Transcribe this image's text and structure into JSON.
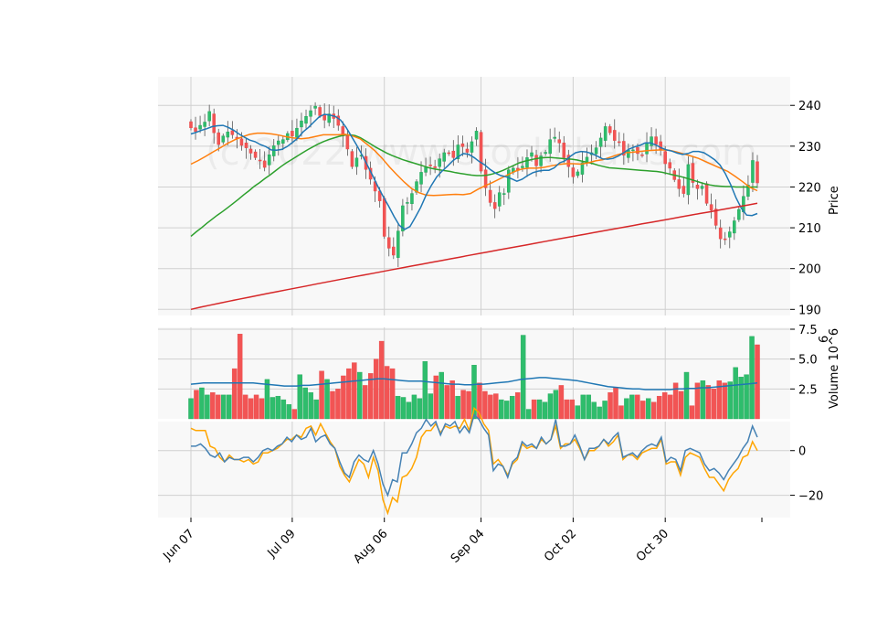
{
  "watermark": "(c)2022 www.stockcharts.com",
  "colors": {
    "up": "#26a65b",
    "down": "#e84a4a",
    "up_body": "#2ebd6c",
    "down_body": "#f25454",
    "ma1": "#1f77b4",
    "ma2": "#ff7f0e",
    "ma3": "#2ca02c",
    "ma4": "#d62728",
    "vol_ma": "#1f77b4",
    "osc1": "#4682b4",
    "osc2": "#ffa500",
    "panel_bg": "#f8f8f8",
    "grid": "#d0d0d0"
  },
  "chart_data": {
    "type": "candlestick",
    "x_tick_labels": [
      "Jun 07",
      "Jul 09",
      "Aug 06",
      "Sep 04",
      "Oct 02",
      "Oct 30"
    ],
    "x_tick_bar_index": [
      0,
      22,
      42,
      63,
      83,
      103
    ],
    "price_panel": {
      "ylabel": "Price",
      "ylim": [
        188.5,
        247
      ],
      "yticks": [
        190,
        200,
        210,
        220,
        230,
        240
      ],
      "close": [
        234.5,
        233.6,
        235.1,
        235.9,
        238.5,
        233.3,
        230.4,
        232.5,
        233.5,
        232.8,
        231.8,
        230.2,
        229.6,
        228.3,
        227.2,
        226.4,
        224.8,
        227.9,
        230.1,
        231.3,
        231.6,
        233.1,
        232.5,
        234.4,
        236.2,
        237.3,
        238.7,
        239.8,
        237.5,
        236.4,
        237.9,
        236.8,
        235.1,
        232.5,
        229.3,
        225.0,
        227.1,
        227.8,
        224.3,
        221.9,
        219.0,
        216.6,
        207.9,
        205.0,
        203.3,
        209.2,
        215.4,
        216.2,
        218.4,
        221.3,
        223.6,
        224.8,
        225.3,
        224.7,
        226.9,
        228.4,
        228.2,
        227.2,
        230.3,
        229.9,
        228.5,
        231.1,
        233.7,
        223.9,
        219.8,
        216.2,
        214.7,
        218.6,
        218.4,
        224.2,
        224.6,
        224.1,
        225.1,
        227.2,
        228.4,
        225.2,
        227.6,
        228.5,
        231.6,
        232.2,
        230.8,
        227.2,
        225.0,
        222.5,
        223.7,
        226.0,
        227.3,
        228.4,
        229.6,
        232.0,
        234.8,
        233.3,
        231.4,
        230.9,
        227.8,
        229.0,
        229.1,
        228.2,
        227.8,
        230.7,
        232.3,
        230.5,
        229.0,
        225.7,
        224.6,
        221.8,
        219.6,
        218.4,
        225.5,
        221.1,
        219.6,
        220.2,
        216.0,
        214.3,
        210.6,
        207.3,
        207.1,
        209.0,
        211.7,
        214.5,
        217.7,
        220.5,
        226.5,
        221.0
      ],
      "ohlc_note": "open/high/low derived in script from close for rendering",
      "moving_averages": [
        {
          "name": "MA10",
          "values": [
            233.0,
            233.4,
            233.9,
            234.3,
            234.8,
            235.0,
            235.1,
            234.6,
            233.9,
            233.0,
            232.2,
            231.5,
            231.1,
            230.4,
            229.9,
            229.1,
            229.0,
            229.2,
            229.9,
            230.9,
            232.0,
            233.5,
            234.6,
            235.9,
            237.2,
            237.8,
            237.6,
            237.3,
            236.4,
            234.7,
            232.5,
            230.3,
            227.9,
            225.4,
            222.8,
            220.1,
            217.6,
            215.3,
            212.8,
            210.6,
            209.6,
            210.3,
            212.6,
            215.0,
            218.0,
            220.4,
            222.5,
            223.9,
            225.1,
            226.4,
            227.4,
            228.2,
            228.0,
            227.2,
            226.2,
            225.4,
            224.3,
            223.4,
            222.8,
            222.5,
            222.0,
            221.4,
            221.9,
            222.8,
            223.5,
            223.9,
            224.1,
            224.1,
            224.7,
            225.9,
            226.4,
            227.5,
            228.4,
            228.7,
            228.6,
            228.2,
            227.6,
            226.9,
            226.8,
            227.0,
            227.6,
            228.4,
            229.3,
            229.8,
            230.2,
            230.8,
            230.8,
            230.3,
            229.6,
            229.1,
            228.8,
            228.3,
            228.0,
            228.2,
            228.7,
            228.7,
            228.4,
            227.6,
            226.7,
            225.4,
            223.3,
            220.6,
            217.4,
            214.8,
            213.1,
            213.0,
            213.5
          ],
          "note": "10-period"
        },
        {
          "name": "MA20",
          "values": [
            225.6,
            226.5,
            227.5,
            228.6,
            229.6,
            230.7,
            231.6,
            232.3,
            232.9,
            233.2,
            233.2,
            233.0,
            232.7,
            232.3,
            232.0,
            231.8,
            232.0,
            232.4,
            232.8,
            232.8,
            232.8,
            232.9,
            232.5,
            231.8,
            230.4,
            228.9,
            227.0,
            224.9,
            223.0,
            221.2,
            219.6,
            218.6,
            218.0,
            217.9,
            218.0,
            218.1,
            218.2,
            218.1,
            218.4,
            219.4,
            220.3,
            221.1,
            222.0,
            222.9,
            223.8,
            224.4,
            224.6,
            224.6,
            224.8,
            225.2,
            225.5,
            225.7,
            225.7,
            225.6,
            225.9,
            226.4,
            226.7,
            227.3,
            227.9,
            228.4,
            228.5,
            228.7,
            228.9,
            229.0,
            229.1,
            229.0,
            228.6,
            228.1,
            227.6,
            227.0,
            226.2,
            225.4,
            224.6,
            223.8,
            222.6,
            221.3,
            219.9,
            219.1
          ],
          "note": "20-period"
        },
        {
          "name": "MA50",
          "values": [
            207.9,
            209.0,
            210.0,
            211.1,
            212.1,
            213.1,
            214.0,
            215.0,
            216.0,
            217.0,
            218.1,
            219.1,
            220.2,
            221.1,
            222.1,
            223.0,
            224.0,
            225.0,
            225.9,
            226.7,
            227.5,
            228.3,
            229.1,
            229.8,
            230.5,
            231.1,
            231.6,
            232.0,
            232.4,
            232.7,
            232.8,
            232.6,
            232.1,
            231.3,
            230.5,
            229.7,
            229.0,
            228.3,
            227.7,
            227.2,
            226.7,
            226.3,
            225.9,
            225.5,
            225.1,
            224.7,
            224.4,
            224.2,
            224.0,
            223.8,
            223.5,
            223.3,
            223.1,
            222.9,
            222.8,
            222.8,
            222.9,
            223.2,
            223.6,
            224.1,
            224.7,
            225.3,
            225.9,
            226.3,
            226.6,
            226.9,
            227.1,
            227.2,
            227.2,
            227.1,
            227.0,
            226.9,
            226.8,
            226.6,
            226.3,
            226.0,
            225.7,
            225.3,
            225.0,
            224.7,
            224.6,
            224.5,
            224.4,
            224.3,
            224.2,
            224.1,
            224.0,
            223.9,
            223.8,
            223.6,
            223.3,
            223.0,
            222.7,
            222.4,
            222.0,
            221.6,
            221.2,
            220.8,
            220.5,
            220.3,
            220.2,
            220.1,
            220.1,
            220.0,
            220.0,
            220.0,
            220.0,
            220.0
          ],
          "note": "50-period"
        },
        {
          "name": "MA200",
          "note": "200-period, linear approx 190.0 to 216.0"
        }
      ]
    },
    "volume_panel": {
      "ylabel": "Volume  10^6",
      "ylim": [
        0,
        7.5
      ],
      "yticks": [
        2.5,
        5.0,
        7.5
      ],
      "values": [
        1.7,
        2.4,
        2.6,
        2.0,
        2.2,
        2.0,
        2.0,
        2.0,
        4.2,
        7.1,
        2.0,
        1.7,
        2.0,
        1.7,
        3.3,
        1.8,
        1.9,
        1.6,
        1.2,
        0.8,
        3.7,
        2.6,
        2.2,
        1.6,
        4.0,
        3.3,
        2.3,
        2.5,
        3.6,
        4.2,
        4.7,
        3.9,
        2.8,
        3.8,
        5.0,
        6.5,
        4.4,
        4.2,
        1.9,
        1.8,
        1.4,
        2.0,
        1.7,
        4.8,
        2.1,
        3.6,
        3.9,
        2.8,
        3.2,
        1.9,
        2.4,
        2.3,
        4.5,
        3.0,
        2.3,
        2.0,
        2.1,
        1.6,
        1.5,
        1.9,
        2.2,
        7.0,
        0.8,
        1.6,
        1.6,
        1.4,
        2.1,
        2.4,
        2.8,
        1.6,
        1.6,
        1.1,
        2.0,
        2.0,
        1.4,
        1.0,
        1.5,
        2.2,
        2.6,
        1.1,
        1.7,
        2.0,
        2.0,
        1.5,
        1.7,
        1.4,
        1.9,
        2.2,
        2.0,
        3.0,
        2.3,
        3.9,
        1.1,
        3.0,
        3.2,
        2.8,
        2.5,
        3.2,
        3.0,
        3.1,
        4.3,
        3.5,
        3.7,
        6.9,
        6.2
      ],
      "ma": [
        2.9,
        2.95,
        3.0,
        3.0,
        3.0,
        3.0,
        3.0,
        3.0,
        3.0,
        3.0,
        3.0,
        2.95,
        2.9,
        2.85,
        2.8,
        2.75,
        2.75,
        2.75,
        2.8,
        2.8,
        2.85,
        2.9,
        2.95,
        3.0,
        3.05,
        3.1,
        3.15,
        3.2,
        3.25,
        3.3,
        3.35,
        3.35,
        3.3,
        3.25,
        3.2,
        3.15,
        3.15,
        3.15,
        3.1,
        3.05,
        3.0,
        2.95,
        2.9,
        2.9,
        2.85,
        2.85,
        2.9,
        2.9,
        2.95,
        3.0,
        3.05,
        3.1,
        3.2,
        3.3,
        3.35,
        3.4,
        3.45,
        3.45,
        3.4,
        3.35,
        3.3,
        3.25,
        3.2,
        3.1,
        3.0,
        2.9,
        2.8,
        2.7,
        2.65,
        2.6,
        2.55,
        2.5,
        2.5,
        2.45,
        2.45,
        2.45,
        2.45,
        2.45,
        2.5,
        2.5,
        2.55,
        2.55,
        2.6,
        2.6,
        2.65,
        2.7,
        2.75,
        2.8,
        2.85,
        2.9,
        2.95,
        3.0
      ],
      "note": "moving average of volume"
    },
    "oscillator_panel": {
      "ylim": [
        -30,
        13
      ],
      "yticks": [
        -20,
        0
      ],
      "series": [
        {
          "name": "",
          "values": [
            2,
            2,
            3,
            1,
            -2,
            -3,
            -1,
            -5,
            -3,
            -4,
            -4,
            -3,
            -3,
            -5,
            -3,
            0,
            1,
            0,
            2,
            3,
            6,
            4,
            7,
            5,
            6,
            10,
            4,
            6,
            7,
            3,
            1,
            -5,
            -10,
            -12,
            -5,
            -2,
            -4,
            -5,
            0,
            -6,
            -15,
            -20,
            -13,
            -14,
            -1,
            -1,
            3,
            8,
            10,
            14,
            11,
            13,
            7,
            12,
            11,
            13,
            8,
            11,
            8,
            16,
            14,
            10,
            7,
            -9,
            -6,
            -7,
            -12,
            -5,
            -3,
            4,
            2,
            3,
            1,
            6,
            3,
            5,
            14,
            2,
            2,
            3,
            7,
            2,
            -4,
            1,
            1,
            2,
            5,
            3,
            6,
            8,
            -3,
            -2,
            -1,
            -3,
            0,
            2,
            3,
            2,
            6,
            -5,
            -3,
            -4,
            -9,
            0,
            1,
            0,
            -1,
            -6,
            -9,
            -8,
            -10,
            -13,
            -9,
            -6,
            -3,
            1,
            4,
            11,
            6
          ]
        },
        {
          "name": "",
          "values": [
            10,
            9,
            9,
            9,
            2,
            1,
            -3,
            -5,
            -2,
            -4,
            -4,
            -5,
            -4,
            -6,
            -5,
            -1,
            -1,
            0,
            1,
            3,
            5,
            5,
            7,
            6,
            10,
            11,
            7,
            12,
            8,
            4,
            1,
            -7,
            -11,
            -14,
            -9,
            -4,
            -6,
            -12,
            -3,
            -9,
            -22,
            -28,
            -21,
            -23,
            -12,
            -11,
            -8,
            -3,
            6,
            9,
            9,
            12,
            8,
            11,
            10,
            11,
            10,
            14,
            9,
            19,
            17,
            12,
            9,
            -6,
            -4,
            -7,
            -11,
            -6,
            -4,
            3,
            1,
            2,
            1,
            5,
            3,
            5,
            11,
            1,
            3,
            3,
            5,
            1,
            -4,
            0,
            0,
            2,
            5,
            2,
            4,
            7,
            -4,
            -2,
            -2,
            -4,
            -1,
            0,
            1,
            1,
            5,
            -6,
            -5,
            -5,
            -11,
            -3,
            -1,
            -2,
            -3,
            -8,
            -12,
            -12,
            -15,
            -18,
            -13,
            -10,
            -8,
            -3,
            -2,
            4,
            0
          ]
        }
      ]
    }
  }
}
